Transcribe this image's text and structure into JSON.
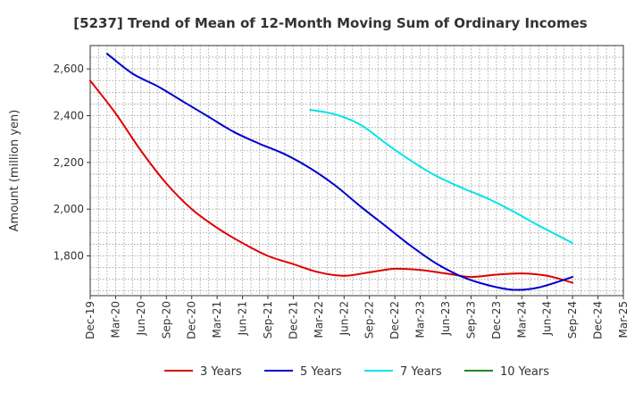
{
  "chart_data": {
    "type": "line",
    "title": "[5237]  Trend of Mean of 12-Month Moving Sum of Ordinary Incomes",
    "xlabel": "",
    "ylabel": "Amount (million yen)",
    "ylim": [
      1630,
      2700
    ],
    "yticks": [
      1800,
      2000,
      2200,
      2400,
      2600
    ],
    "ytick_labels": [
      "1,800",
      "2,000",
      "2,200",
      "2,400",
      "2,600"
    ],
    "x_index_range": [
      0,
      63
    ],
    "xtick_labels": [
      "Dec-19",
      "Mar-20",
      "Jun-20",
      "Sep-20",
      "Dec-20",
      "Mar-21",
      "Jun-21",
      "Sep-21",
      "Dec-21",
      "Mar-22",
      "Jun-22",
      "Sep-22",
      "Dec-22",
      "Mar-23",
      "Jun-23",
      "Sep-23",
      "Dec-23",
      "Mar-24",
      "Jun-24",
      "Sep-24",
      "Dec-24",
      "Mar-25"
    ],
    "grid": true,
    "legend_position": "bottom",
    "series": [
      {
        "name": "3 Years",
        "color": "#dd0000",
        "points": [
          {
            "i": 0,
            "v": 2550
          },
          {
            "i": 3,
            "v": 2410
          },
          {
            "i": 6,
            "v": 2250
          },
          {
            "i": 9,
            "v": 2110
          },
          {
            "i": 12,
            "v": 2000
          },
          {
            "i": 15,
            "v": 1920
          },
          {
            "i": 18,
            "v": 1855
          },
          {
            "i": 21,
            "v": 1800
          },
          {
            "i": 24,
            "v": 1765
          },
          {
            "i": 27,
            "v": 1730
          },
          {
            "i": 30,
            "v": 1715
          },
          {
            "i": 33,
            "v": 1730
          },
          {
            "i": 36,
            "v": 1745
          },
          {
            "i": 39,
            "v": 1740
          },
          {
            "i": 42,
            "v": 1725
          },
          {
            "i": 45,
            "v": 1710
          },
          {
            "i": 48,
            "v": 1720
          },
          {
            "i": 51,
            "v": 1725
          },
          {
            "i": 54,
            "v": 1715
          },
          {
            "i": 57,
            "v": 1685
          }
        ]
      },
      {
        "name": "5 Years",
        "color": "#0000cc",
        "points": [
          {
            "i": 2,
            "v": 2665
          },
          {
            "i": 5,
            "v": 2580
          },
          {
            "i": 8,
            "v": 2525
          },
          {
            "i": 11,
            "v": 2460
          },
          {
            "i": 14,
            "v": 2395
          },
          {
            "i": 17,
            "v": 2330
          },
          {
            "i": 20,
            "v": 2280
          },
          {
            "i": 23,
            "v": 2235
          },
          {
            "i": 26,
            "v": 2175
          },
          {
            "i": 29,
            "v": 2100
          },
          {
            "i": 32,
            "v": 2010
          },
          {
            "i": 35,
            "v": 1925
          },
          {
            "i": 38,
            "v": 1840
          },
          {
            "i": 41,
            "v": 1765
          },
          {
            "i": 44,
            "v": 1710
          },
          {
            "i": 47,
            "v": 1675
          },
          {
            "i": 50,
            "v": 1655
          },
          {
            "i": 53,
            "v": 1665
          },
          {
            "i": 57,
            "v": 1710
          }
        ]
      },
      {
        "name": "7 Years",
        "color": "#00e5e5",
        "points": [
          {
            "i": 26,
            "v": 2425
          },
          {
            "i": 29,
            "v": 2405
          },
          {
            "i": 32,
            "v": 2360
          },
          {
            "i": 35,
            "v": 2280
          },
          {
            "i": 38,
            "v": 2205
          },
          {
            "i": 41,
            "v": 2140
          },
          {
            "i": 44,
            "v": 2090
          },
          {
            "i": 47,
            "v": 2045
          },
          {
            "i": 50,
            "v": 1990
          },
          {
            "i": 53,
            "v": 1930
          },
          {
            "i": 57,
            "v": 1855
          }
        ]
      },
      {
        "name": "10 Years",
        "color": "#228822",
        "points": []
      }
    ]
  }
}
